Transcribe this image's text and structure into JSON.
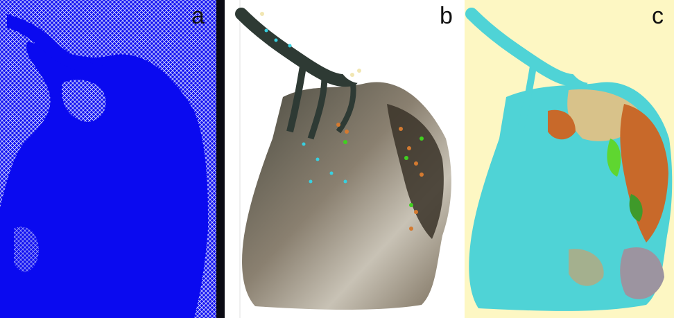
{
  "panels": [
    {
      "letter": "a",
      "background": "#f4f6ff",
      "fill": "#0a0af0",
      "texture": "#e8eaff"
    },
    {
      "letter": "b",
      "background": "#ffffff",
      "fill": "#6e6251",
      "light": "#c9c2b4",
      "dark": "#2e3a34"
    },
    {
      "letter": "c",
      "background": "#fdf7c3",
      "fill": "#4fd3d6",
      "orange": "#c8692a",
      "green": "#5fd630",
      "gray": "#9c94a0"
    }
  ],
  "legend_colors": {
    "water": "#38d0e0",
    "soil": "#d47a30",
    "vegetation": "#40d020",
    "sand": "#f1e6b2"
  }
}
